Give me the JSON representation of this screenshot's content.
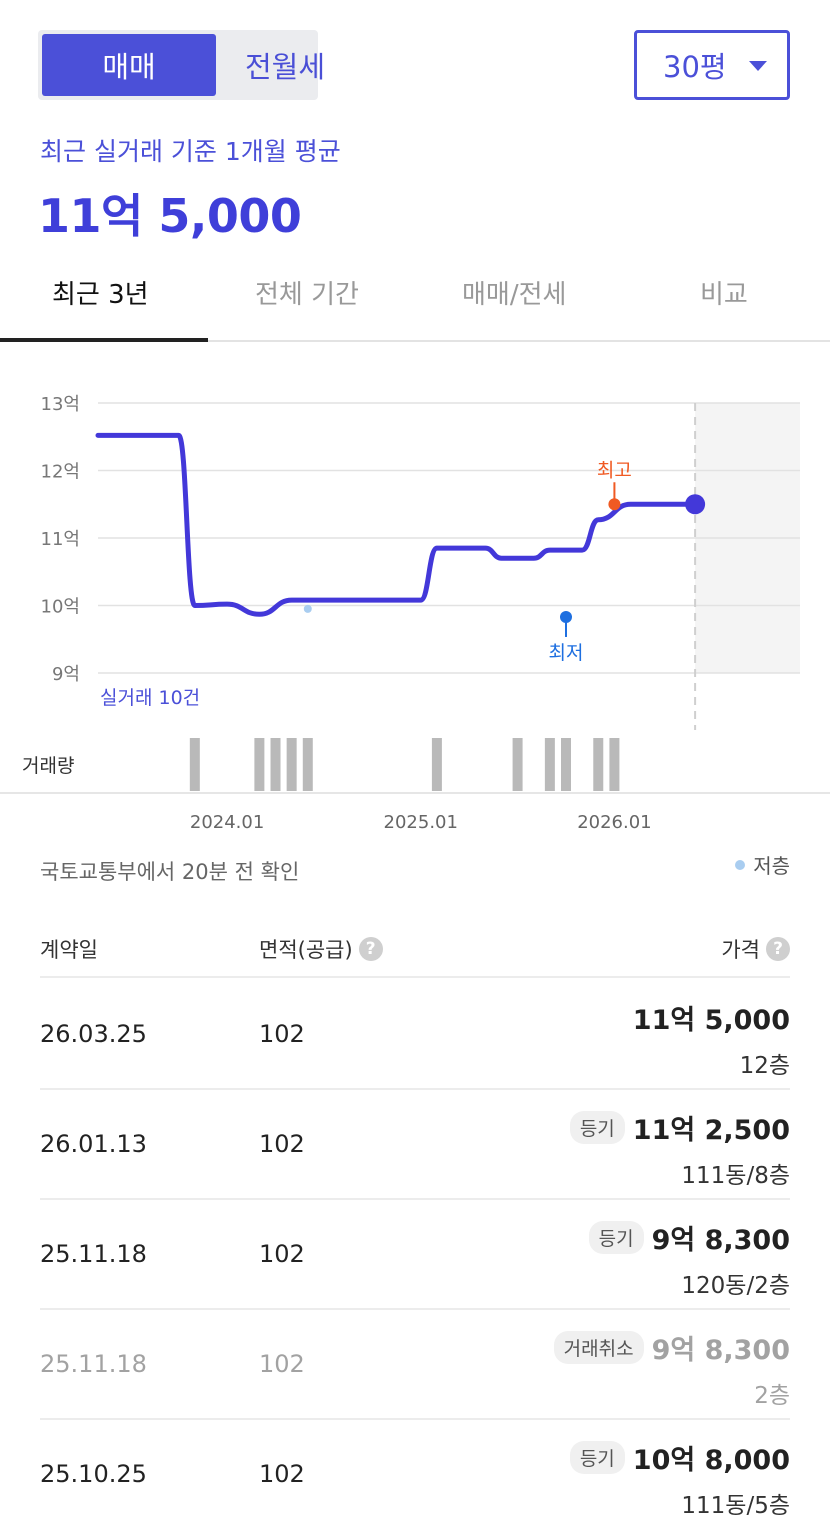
{
  "segment": {
    "options": [
      "매매",
      "전월세"
    ],
    "selected": 0
  },
  "size_select": {
    "value": "30평"
  },
  "summary": {
    "label": "최근 실거래 기준 1개월 평균",
    "price": "11억 5,000"
  },
  "tabs": [
    {
      "label": "최근 3년",
      "active": true
    },
    {
      "label": "전체 기간",
      "active": false
    },
    {
      "label": "매매/전세",
      "active": false
    },
    {
      "label": "비교",
      "active": false
    }
  ],
  "chart_data": {
    "type": "line",
    "y_tick_labels": [
      "13억",
      "12억",
      "11억",
      "10억",
      "9억"
    ],
    "y_ticks": [
      13,
      12,
      11,
      10,
      9
    ],
    "ylim": [
      9,
      13
    ],
    "unit": "억",
    "x_tick_labels": [
      "2024.01",
      "2025.01",
      "2026.01"
    ],
    "series": [
      {
        "values": [
          {
            "date": "2023-05",
            "y": 12.52
          },
          {
            "date": "2023-10",
            "y": 12.52
          },
          {
            "date": "2023-11",
            "y": 10.0
          },
          {
            "date": "2024-01",
            "y": 10.02
          },
          {
            "date": "2024-03",
            "y": 9.87
          },
          {
            "date": "2024-05",
            "y": 10.08
          },
          {
            "date": "2025-01",
            "y": 10.08
          },
          {
            "date": "2025-02",
            "y": 10.85
          },
          {
            "date": "2025-05",
            "y": 10.85
          },
          {
            "date": "2025-06",
            "y": 10.7
          },
          {
            "date": "2025-08",
            "y": 10.7
          },
          {
            "date": "2025-09",
            "y": 10.82
          },
          {
            "date": "2025-11",
            "y": 10.82
          },
          {
            "date": "2025-12",
            "y": 11.27
          },
          {
            "date": "2026-02",
            "y": 11.5
          },
          {
            "date": "2026-06",
            "y": 11.5
          }
        ],
        "color": "#4338d9"
      }
    ],
    "low_floor_points": [
      {
        "date": "2024-06",
        "y": 9.95
      }
    ],
    "annotations": {
      "high": {
        "label": "최고",
        "date": "2026-01",
        "y": 11.5,
        "color": "#f05a23"
      },
      "low": {
        "label": "최저",
        "date": "2025-10",
        "y": 9.83,
        "color": "#1e6fe0"
      }
    },
    "deal_count_label": "실거래 10건",
    "volume_label": "거래량",
    "volume_bars": [
      "2023-11",
      "2024-03",
      "2024-04",
      "2024-05",
      "2024-06",
      "2025-02",
      "2025-07",
      "2025-09",
      "2025-10",
      "2025-12",
      "2026-01"
    ],
    "forecast_shading": true,
    "grid": true
  },
  "source_text": "국토교통부에서 20분 전 확인",
  "legend_label": "저층",
  "table": {
    "headers": {
      "date": "계약일",
      "area": "면적(공급)",
      "price": "가격"
    },
    "help_glyph": "?",
    "rows": [
      {
        "date": "26.03.25",
        "area": "102",
        "badge": "",
        "price": "11억 5,000",
        "floor": "12층",
        "cancelled": false
      },
      {
        "date": "26.01.13",
        "area": "102",
        "badge": "등기",
        "price": "11억 2,500",
        "floor": "111동/8층",
        "cancelled": false
      },
      {
        "date": "25.11.18",
        "area": "102",
        "badge": "등기",
        "price": "9억 8,300",
        "floor": "120동/2층",
        "cancelled": false
      },
      {
        "date": "25.11.18",
        "area": "102",
        "badge": "거래취소",
        "price": "9억 8,300",
        "floor": "2층",
        "cancelled": true
      },
      {
        "date": "25.10.25",
        "area": "102",
        "badge": "등기",
        "price": "10억 8,000",
        "floor": "111동/5층",
        "cancelled": false
      }
    ]
  }
}
